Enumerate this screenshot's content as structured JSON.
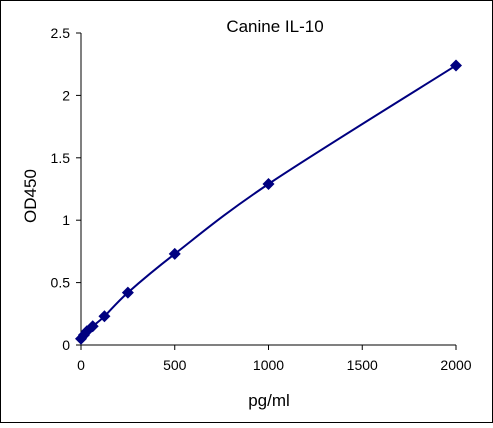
{
  "chart_data": {
    "type": "scatter",
    "title": "Canine IL-10",
    "xlabel": "pg/ml",
    "ylabel": "OD450",
    "xlim": [
      0,
      2000
    ],
    "ylim": [
      0,
      2.5
    ],
    "x_ticks": [
      0,
      500,
      1000,
      1500,
      2000
    ],
    "y_ticks": [
      0,
      0.5,
      1,
      1.5,
      2,
      2.5
    ],
    "x_tick_labels": [
      "0",
      "500",
      "1000",
      "1500",
      "2000"
    ],
    "y_tick_labels": [
      "0",
      "0.5",
      "1",
      "1.5",
      "2",
      "2.5"
    ],
    "grid": false,
    "legend": "none",
    "fit_line": true,
    "series": [
      {
        "x": [
          0,
          15.6,
          31.25,
          62.5,
          125,
          250,
          500,
          1000,
          2000
        ],
        "y": [
          0.05,
          0.08,
          0.11,
          0.15,
          0.23,
          0.42,
          0.73,
          1.29,
          2.24
        ],
        "color": "#000080",
        "marker": "diamond"
      }
    ]
  }
}
